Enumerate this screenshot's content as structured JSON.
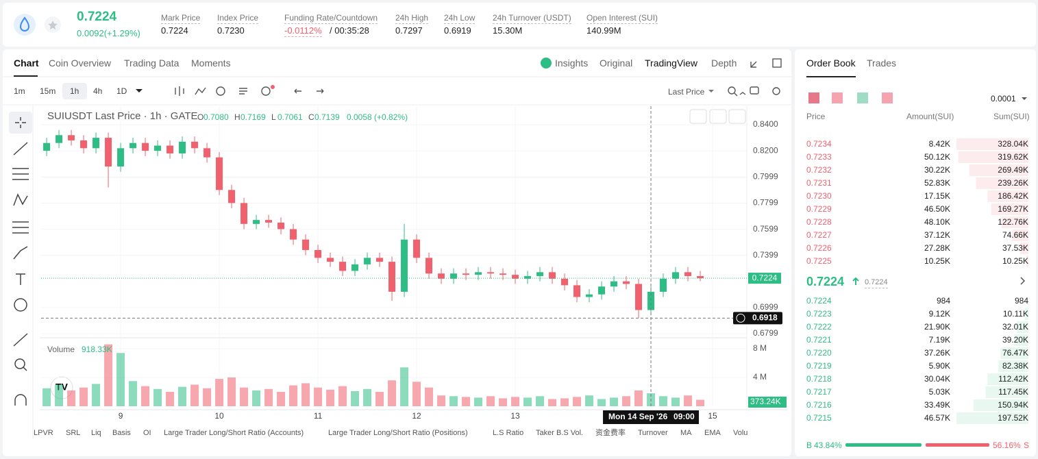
{
  "header": {
    "price": "0.7224",
    "change": "0.0092(+1.29%)",
    "stats": [
      {
        "label": "Mark Price",
        "value": "0.7224"
      },
      {
        "label": "Index Price",
        "value": "0.7230"
      },
      {
        "label": "Funding Rate/Countdown",
        "value": "-0.0112%",
        "extra": "/ 00:35:28"
      },
      {
        "label": "24h High",
        "value": "0.7297"
      },
      {
        "label": "24h Low",
        "value": "0.6919"
      },
      {
        "label": "24h Turnover (USDT)",
        "value": "15.30M"
      },
      {
        "label": "Open Interest (SUI)",
        "value": "140.99M"
      }
    ]
  },
  "tabs": [
    "Chart",
    "Coin Overview",
    "Trading Data",
    "Moments"
  ],
  "views": [
    "Insights",
    "Original",
    "TradingView",
    "Depth"
  ],
  "intervals": [
    "1m",
    "15m",
    "1h",
    "4h",
    "1D"
  ],
  "price_type": "Last Price",
  "legend": {
    "symbol": "SUIUSDT Last Price · 1h · GATE",
    "ohlc": [
      [
        "O",
        "0.7080"
      ],
      [
        "H",
        "0.7169"
      ],
      [
        "L",
        "0.7061"
      ],
      [
        "C",
        "0.7139"
      ]
    ],
    "change": "0.0058 (+0.82%)"
  },
  "volume_pane": {
    "title": "Volume",
    "reading": "918.33K",
    "last": "373.24K"
  },
  "indicators": [
    "LPVR",
    "SRL",
    "Liq",
    "Basis",
    "OI",
    "Large Trader Long/Short Ratio (Accounts)",
    "Large Trader Long/Short Ratio (Positions)",
    "L.S Ratio",
    "Taker B.S Vol.",
    "资金费率",
    "Turnover",
    "MA",
    "EMA",
    "Volu"
  ],
  "chart_data": {
    "type": "candlestick",
    "up_color": "#2ebd85",
    "down_color": "#f0616d",
    "x": [
      8.25,
      8.375,
      8.5,
      8.625,
      8.75,
      8.875,
      9,
      9.125,
      9.25,
      9.375,
      9.5,
      9.625,
      9.75,
      9.875,
      10,
      10.125,
      10.25,
      10.375,
      10.5,
      10.625,
      10.75,
      10.875,
      11,
      11.125,
      11.25,
      11.375,
      11.5,
      11.625,
      11.75,
      11.875,
      12,
      12.125,
      12.25,
      12.375,
      12.5,
      12.625,
      12.75,
      12.875,
      13,
      13.125,
      13.25,
      13.375,
      13.5,
      13.625,
      13.75,
      13.875,
      14,
      14.125,
      14.25,
      14.375,
      14.5,
      14.625,
      14.75,
      14.875
    ],
    "open": [
      0.82,
      0.826,
      0.832,
      0.828,
      0.822,
      0.83,
      0.808,
      0.822,
      0.826,
      0.82,
      0.824,
      0.818,
      0.827,
      0.822,
      0.815,
      0.79,
      0.78,
      0.764,
      0.767,
      0.765,
      0.76,
      0.752,
      0.744,
      0.738,
      0.735,
      0.728,
      0.733,
      0.738,
      0.735,
      0.712,
      0.752,
      0.738,
      0.726,
      0.722,
      0.726,
      0.725,
      0.727,
      0.726,
      0.725,
      0.722,
      0.724,
      0.727,
      0.722,
      0.717,
      0.708,
      0.71,
      0.716,
      0.72,
      0.718,
      0.698,
      0.712,
      0.722,
      0.727,
      0.724
    ],
    "high": [
      0.83,
      0.836,
      0.836,
      0.832,
      0.834,
      0.834,
      0.826,
      0.83,
      0.83,
      0.828,
      0.828,
      0.831,
      0.831,
      0.826,
      0.819,
      0.794,
      0.784,
      0.771,
      0.771,
      0.769,
      0.764,
      0.756,
      0.748,
      0.742,
      0.739,
      0.737,
      0.742,
      0.742,
      0.739,
      0.764,
      0.756,
      0.742,
      0.73,
      0.73,
      0.73,
      0.731,
      0.731,
      0.73,
      0.729,
      0.728,
      0.731,
      0.731,
      0.726,
      0.721,
      0.714,
      0.72,
      0.724,
      0.724,
      0.722,
      0.716,
      0.726,
      0.731,
      0.731,
      0.728
    ],
    "low": [
      0.816,
      0.822,
      0.824,
      0.818,
      0.818,
      0.792,
      0.804,
      0.818,
      0.816,
      0.816,
      0.814,
      0.814,
      0.818,
      0.811,
      0.786,
      0.776,
      0.76,
      0.76,
      0.761,
      0.756,
      0.748,
      0.74,
      0.734,
      0.731,
      0.724,
      0.724,
      0.729,
      0.731,
      0.705,
      0.708,
      0.734,
      0.722,
      0.718,
      0.718,
      0.721,
      0.721,
      0.722,
      0.721,
      0.718,
      0.718,
      0.72,
      0.718,
      0.713,
      0.704,
      0.704,
      0.706,
      0.712,
      0.714,
      0.692,
      0.694,
      0.708,
      0.718,
      0.72,
      0.72
    ],
    "close": [
      0.826,
      0.832,
      0.828,
      0.822,
      0.83,
      0.808,
      0.822,
      0.826,
      0.82,
      0.824,
      0.818,
      0.827,
      0.822,
      0.815,
      0.79,
      0.78,
      0.764,
      0.767,
      0.765,
      0.76,
      0.752,
      0.744,
      0.738,
      0.735,
      0.728,
      0.733,
      0.738,
      0.735,
      0.712,
      0.752,
      0.738,
      0.726,
      0.722,
      0.726,
      0.725,
      0.727,
      0.726,
      0.725,
      0.722,
      0.724,
      0.727,
      0.722,
      0.717,
      0.708,
      0.71,
      0.716,
      0.72,
      0.718,
      0.698,
      0.712,
      0.722,
      0.727,
      0.724,
      0.7224
    ],
    "volume": {
      "values": [
        2.5,
        3.0,
        2.2,
        2.6,
        3.1,
        8.6,
        7.4,
        3.5,
        2.8,
        2.4,
        2.0,
        2.7,
        3.0,
        2.5,
        3.8,
        4.0,
        2.6,
        2.2,
        2.4,
        2.0,
        2.9,
        3.2,
        2.6,
        2.3,
        2.8,
        2.1,
        2.4,
        2.0,
        3.6,
        5.4,
        3.4,
        2.6,
        1.5,
        1.4,
        1.3,
        1.2,
        1.4,
        1.1,
        1.3,
        1.2,
        1.4,
        1.0,
        1.1,
        1.3,
        1.5,
        1.0,
        1.2,
        1.4,
        2.2,
        1.8,
        1.4,
        1.2,
        1.5,
        0.9
      ],
      "ylim": [
        0,
        9.33
      ],
      "yticks": [
        {
          "value": 4,
          "label": "4 M"
        },
        {
          "value": 8,
          "label": "8 M"
        }
      ]
    },
    "xlim": [
      8.194,
      15.347
    ],
    "xticks": [
      9,
      10,
      11,
      12,
      13,
      15
    ],
    "ylim": [
      0.6773,
      0.8542
    ],
    "yticks": [
      {
        "value": 0.84,
        "label": "0.8400"
      },
      {
        "value": 0.82,
        "label": "0.8200"
      },
      0.7999,
      0.7799,
      0.7599,
      0.7399,
      0.6999,
      0.6799
    ],
    "last_price": 0.7224,
    "crosshair": {
      "x": 14.375,
      "price": 0.6918,
      "date": "Mon 14 Sep '26",
      "time": "09:00"
    }
  },
  "orderbook": {
    "tabs": [
      "Order Book",
      "Trades"
    ],
    "precision": "0.0001",
    "columns": [
      "Price",
      "Amount(SUI)",
      "Sum(SUI)"
    ],
    "asks": [
      [
        "0.7234",
        "8.42K",
        {
          "value": 328040,
          "label": "328.04K"
        }
      ],
      [
        "0.7233",
        "50.12K",
        {
          "value": 319620,
          "label": "319.62K"
        }
      ],
      [
        "0.7232",
        "30.22K",
        {
          "value": 269490,
          "label": "269.49K"
        }
      ],
      [
        "0.7231",
        "52.83K",
        {
          "value": 239260,
          "label": "239.26K"
        }
      ],
      [
        "0.7230",
        "17.15K",
        {
          "value": 186420,
          "label": "186.42K"
        }
      ],
      [
        "0.7229",
        "46.50K",
        {
          "value": 169270,
          "label": "169.27K"
        }
      ],
      [
        "0.7228",
        "48.10K",
        {
          "value": 122760,
          "label": "122.76K"
        }
      ],
      [
        "0.7227",
        "37.12K",
        {
          "value": 74660,
          "label": "74.66K"
        }
      ],
      [
        "0.7226",
        "27.28K",
        {
          "value": 37530,
          "label": "37.53K"
        }
      ],
      [
        "0.7225",
        "10.25K",
        {
          "value": 10250,
          "label": "10.25K"
        }
      ]
    ],
    "mid": "0.7224",
    "mark": "0.7224",
    "bids": [
      [
        "0.7224",
        "984",
        {
          "value": 984,
          "label": "984"
        }
      ],
      [
        "0.7223",
        "9.12K",
        {
          "value": 10110,
          "label": "10.11K"
        }
      ],
      [
        "0.7222",
        "21.90K",
        {
          "value": 32010,
          "label": "32.01K"
        }
      ],
      [
        "0.7221",
        "7.19K",
        {
          "value": 39200,
          "label": "39.20K"
        }
      ],
      [
        "0.7220",
        "37.26K",
        {
          "value": 76470,
          "label": "76.47K"
        }
      ],
      [
        "0.7219",
        "5.90K",
        {
          "value": 82380,
          "label": "82.38K"
        }
      ],
      [
        "0.7218",
        "30.04K",
        {
          "value": 112420,
          "label": "112.42K"
        }
      ],
      [
        "0.7217",
        "5.03K",
        {
          "value": 117450,
          "label": "117.45K"
        }
      ],
      [
        "0.7216",
        "33.49K",
        {
          "value": 150940,
          "label": "150.94K"
        }
      ],
      [
        "0.7215",
        "46.57K",
        {
          "value": 197520,
          "label": "197.52K"
        }
      ]
    ],
    "buy": {
      "letter": "B",
      "share": {
        "value": 43.84,
        "label": "43.84%"
      }
    },
    "sell": {
      "letter": "S",
      "share": {
        "value": 56.16,
        "label": "56.16%"
      }
    }
  }
}
